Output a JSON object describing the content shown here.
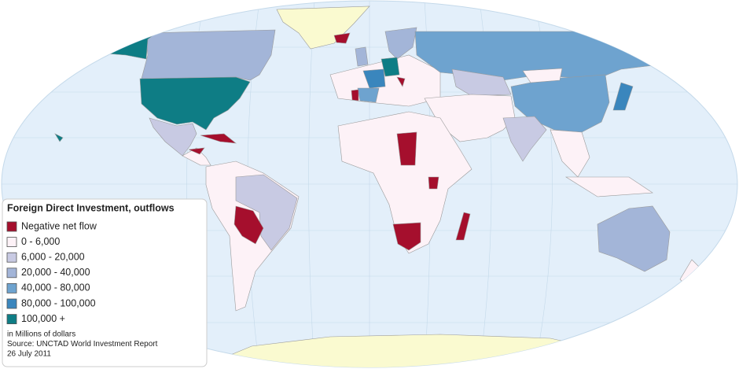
{
  "legend": {
    "title": "Foreign Direct Investment, outflows",
    "items": [
      {
        "label": "Negative net flow",
        "color": "#a50f2d"
      },
      {
        "label": "0 - 6,000",
        "color": "#fdf2f7"
      },
      {
        "label": "6,000 - 20,000",
        "color": "#c8cae3"
      },
      {
        "label": "20,000 - 40,000",
        "color": "#a3b5d8"
      },
      {
        "label": "40,000 - 80,000",
        "color": "#6ea3cf"
      },
      {
        "label": "80,000 - 100,000",
        "color": "#3a86bd"
      },
      {
        "label": "100,000 +",
        "color": "#0e7d85"
      }
    ],
    "notes": [
      "in Millions of dollars",
      "Source: UNCTAD World Investment Report",
      "26 July 2011"
    ]
  }
}
